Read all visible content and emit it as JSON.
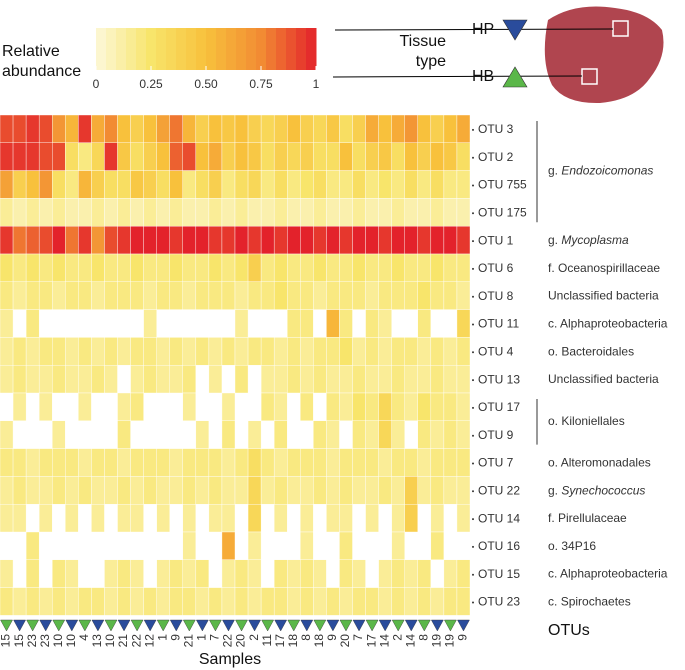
{
  "chart_data": {
    "type": "heatmap",
    "rows": [
      "OTU 3",
      "OTU 2",
      "OTU 755",
      "OTU 175",
      "OTU 1",
      "OTU 6",
      "OTU 8",
      "OTU 11",
      "OTU 4",
      "OTU 13",
      "OTU 17",
      "OTU 9",
      "OTU 7",
      "OTU 22",
      "OTU 14",
      "OTU 16",
      "OTU 15",
      "OTU 23"
    ],
    "columns": [
      "15",
      "15",
      "23",
      "23",
      "10",
      "10",
      "4",
      "13",
      "10",
      "21",
      "22",
      "12",
      "1",
      "9",
      "21",
      "1",
      "7",
      "22",
      "20",
      "2",
      "11",
      "17",
      "18",
      "8",
      "18",
      "9",
      "20",
      "7",
      "17",
      "14",
      "2",
      "14",
      "8",
      "19",
      "19",
      "9"
    ],
    "column_groups": [
      "HB",
      "HP",
      "HB",
      "HP",
      "HB",
      "HP",
      "HB",
      "HP",
      "HB",
      "HP",
      "HB",
      "HP",
      "HB",
      "HP",
      "HB",
      "HP",
      "HB",
      "HP",
      "HB",
      "HP",
      "HB",
      "HP",
      "HB",
      "HP",
      "HB",
      "HP",
      "HB",
      "HP",
      "HB",
      "HP",
      "HB",
      "HP",
      "HB",
      "HP",
      "HB",
      "HP"
    ],
    "groups": [
      {
        "name": "HP",
        "color": "#2a4c9c"
      },
      {
        "name": "HB",
        "color": "#5bb749"
      }
    ],
    "group_title": "Tissue type",
    "x_label": "Samples",
    "row_axis_label": "OTUs",
    "taxa": [
      {
        "rank": "g.",
        "name": "Endozoicomonas",
        "italic": true
      },
      {
        "rank": "g.",
        "name": "Endozoicomonas",
        "italic": true
      },
      {
        "rank": "g.",
        "name": "Endozoicomonas",
        "italic": true
      },
      {
        "rank": "g.",
        "name": "Endozoicomonas",
        "italic": true
      },
      {
        "rank": "g.",
        "name": "Mycoplasma",
        "italic": true
      },
      {
        "rank": "f.",
        "name": "Oceanospirillaceae"
      },
      {
        "name": "Unclassified bacteria"
      },
      {
        "rank": "c.",
        "name": "Alphaproteobacteria"
      },
      {
        "rank": "o.",
        "name": "Bacteroidales"
      },
      {
        "name": "Unclassified bacteria"
      },
      {
        "rank": "o.",
        "name": "Kiloniellales"
      },
      {
        "rank": "o.",
        "name": "Kiloniellales"
      },
      {
        "rank": "o.",
        "name": "Alteromonadales"
      },
      {
        "rank": "g.",
        "name": "Synechococcus",
        "italic": true
      },
      {
        "rank": "f.",
        "name": "Pirellulaceae"
      },
      {
        "rank": "o.",
        "name": "34P16"
      },
      {
        "rank": "c.",
        "name": "Alphaproteobacteria"
      },
      {
        "rank": "c.",
        "name": "Spirochaetes"
      }
    ],
    "values": [
      [
        0.9,
        0.9,
        0.95,
        0.9,
        0.7,
        0.55,
        0.95,
        0.6,
        0.75,
        0.5,
        0.4,
        0.5,
        0.65,
        0.8,
        0.55,
        0.4,
        0.5,
        0.45,
        0.5,
        0.4,
        0.35,
        0.4,
        0.5,
        0.4,
        0.35,
        0.45,
        0.3,
        0.4,
        0.6,
        0.5,
        0.6,
        0.7,
        0.5,
        0.4,
        0.5,
        0.6
      ],
      [
        0.95,
        0.95,
        0.95,
        0.9,
        0.9,
        0.3,
        0.2,
        0.35,
        0.95,
        0.45,
        0.3,
        0.4,
        0.5,
        0.85,
        0.9,
        0.5,
        0.6,
        0.4,
        0.5,
        0.45,
        0.3,
        0.4,
        0.35,
        0.4,
        0.3,
        0.3,
        0.5,
        0.3,
        0.4,
        0.45,
        0.3,
        0.5,
        0.4,
        0.5,
        0.45,
        0.3
      ],
      [
        0.65,
        0.4,
        0.5,
        0.7,
        0.3,
        0.2,
        0.55,
        0.4,
        0.3,
        0.3,
        0.45,
        0.4,
        0.3,
        0.5,
        0.2,
        0.3,
        0.4,
        0.2,
        0.3,
        0.35,
        0.2,
        0.3,
        0.2,
        0.25,
        0.3,
        0.2,
        0.2,
        0.3,
        0.2,
        0.25,
        0.2,
        0.3,
        0.2,
        0.3,
        0.2,
        0.2
      ],
      [
        0.15,
        0.1,
        0.15,
        0.1,
        0.15,
        0.1,
        0.1,
        0.15,
        0.1,
        0.15,
        0.1,
        0.15,
        0.1,
        0.15,
        0.1,
        0.1,
        0.15,
        0.1,
        0.15,
        0.1,
        0.1,
        0.15,
        0.1,
        0.1,
        0.15,
        0.1,
        0.1,
        0.15,
        0.1,
        0.1,
        0.15,
        0.1,
        0.1,
        0.15,
        0.1,
        0.1
      ],
      [
        0.95,
        0.8,
        0.85,
        0.9,
        1,
        0.8,
        0.95,
        0.7,
        0.9,
        0.95,
        1,
        1,
        1,
        0.95,
        1,
        1,
        0.95,
        0.95,
        1,
        0.95,
        1,
        0.95,
        1,
        1,
        0.95,
        1,
        0.95,
        1,
        1,
        0.95,
        1,
        1,
        0.95,
        1,
        1,
        0.95
      ],
      [
        0.25,
        0.2,
        0.25,
        0.2,
        0.25,
        0.2,
        0.2,
        0.25,
        0.2,
        0.2,
        0.25,
        0.2,
        0.2,
        0.25,
        0.2,
        0.2,
        0.25,
        0.2,
        0.25,
        0.4,
        0.2,
        0.25,
        0.2,
        0.2,
        0.25,
        0.2,
        0.2,
        0.25,
        0.2,
        0.2,
        0.25,
        0.2,
        0.2,
        0.25,
        0.2,
        0.2
      ],
      [
        0.2,
        0.15,
        0.2,
        0.2,
        0.15,
        0.2,
        0.2,
        0.15,
        0.2,
        0.2,
        0.2,
        0.15,
        0.2,
        0.2,
        0.15,
        0.2,
        0.2,
        0.2,
        0.15,
        0.2,
        0.2,
        0.25,
        0.2,
        0.2,
        0.15,
        0.2,
        0.2,
        0.2,
        0.15,
        0.2,
        0.2,
        0.2,
        0.25,
        0.2,
        0.2,
        0.15
      ],
      [
        0.15,
        null,
        0.2,
        null,
        null,
        null,
        null,
        null,
        null,
        null,
        null,
        0.15,
        null,
        null,
        null,
        null,
        null,
        null,
        0.15,
        null,
        null,
        null,
        0.2,
        0.2,
        null,
        0.55,
        0.2,
        null,
        0.2,
        0.15,
        null,
        null,
        0.2,
        null,
        null,
        0.35
      ],
      [
        0.15,
        0.2,
        0.15,
        0.2,
        0.2,
        0.15,
        0.2,
        0.15,
        0.2,
        0.15,
        0.2,
        0.2,
        0.15,
        0.2,
        0.15,
        0.2,
        0.15,
        0.2,
        0.15,
        0.2,
        0.2,
        0.15,
        0.2,
        0.15,
        0.2,
        0.2,
        0.25,
        0.15,
        0.2,
        0.15,
        0.2,
        0.2,
        0.15,
        0.2,
        0.15,
        0.2
      ],
      [
        0.15,
        0.2,
        0.15,
        0.15,
        0.2,
        0.15,
        0.15,
        0.2,
        0.15,
        null,
        0.15,
        0.2,
        0.15,
        0.15,
        0.2,
        null,
        0.15,
        null,
        0.2,
        null,
        0.15,
        0.15,
        0.2,
        0.15,
        0.2,
        0.15,
        0.15,
        0.2,
        0.15,
        0.15,
        0.2,
        0.15,
        0.15,
        0.2,
        0.15,
        0.15
      ],
      [
        null,
        0.15,
        null,
        0.15,
        null,
        null,
        0.15,
        null,
        null,
        0.15,
        0.2,
        null,
        null,
        null,
        0.15,
        null,
        null,
        0.15,
        null,
        null,
        0.2,
        0.15,
        null,
        0.2,
        null,
        0.2,
        0.15,
        0.25,
        0.2,
        0.35,
        0.2,
        0.15,
        0.25,
        0.2,
        0.2,
        0.15
      ],
      [
        0.15,
        null,
        null,
        null,
        0.15,
        null,
        null,
        null,
        null,
        0.2,
        null,
        null,
        null,
        null,
        null,
        0.15,
        null,
        0.2,
        null,
        0.15,
        null,
        0.2,
        null,
        null,
        0.2,
        0.15,
        null,
        0.2,
        0.15,
        0.35,
        0.15,
        null,
        0.2,
        0.15,
        0.2,
        0.15
      ],
      [
        0.2,
        0.2,
        0.15,
        0.2,
        0.2,
        0.2,
        0.15,
        0.2,
        0.2,
        0.15,
        0.2,
        0.2,
        0.2,
        0.15,
        0.2,
        0.2,
        0.2,
        0.15,
        0.2,
        0.3,
        0.2,
        0.15,
        0.2,
        0.2,
        0.2,
        0.15,
        0.2,
        0.2,
        0.2,
        0.15,
        0.2,
        0.2,
        0.15,
        0.2,
        0.2,
        0.2
      ],
      [
        0.15,
        0.2,
        0.15,
        0.15,
        0.2,
        0.15,
        0.2,
        0.15,
        0.15,
        0.2,
        0.15,
        0.2,
        0.15,
        0.15,
        0.2,
        0.15,
        0.2,
        0.15,
        0.15,
        0.35,
        0.15,
        0.2,
        0.15,
        0.15,
        0.2,
        0.15,
        0.2,
        0.15,
        0.15,
        0.2,
        0.15,
        0.4,
        0.15,
        0.2,
        0.15,
        0.15
      ],
      [
        0.15,
        0.15,
        null,
        0.15,
        null,
        0.15,
        null,
        0.15,
        null,
        0.15,
        0.15,
        null,
        0.15,
        null,
        0.15,
        null,
        0.15,
        0.15,
        null,
        0.35,
        null,
        0.15,
        null,
        0.15,
        null,
        0.15,
        0.15,
        null,
        0.15,
        null,
        0.15,
        0.4,
        null,
        0.15,
        null,
        0.15
      ],
      [
        null,
        null,
        0.2,
        null,
        null,
        null,
        null,
        null,
        null,
        null,
        null,
        null,
        null,
        null,
        0.15,
        null,
        null,
        0.6,
        null,
        0.15,
        null,
        null,
        null,
        0.15,
        null,
        null,
        0.2,
        null,
        null,
        null,
        0.15,
        null,
        null,
        0.2,
        null,
        null
      ],
      [
        0.15,
        null,
        0.2,
        null,
        0.2,
        0.15,
        null,
        null,
        0.15,
        0.2,
        0.15,
        null,
        0.15,
        0.2,
        0.15,
        0.2,
        null,
        0.15,
        0.2,
        0.15,
        null,
        0.2,
        0.15,
        0.2,
        0.15,
        null,
        0.2,
        0.15,
        null,
        0.15,
        0.2,
        0.15,
        0.2,
        null,
        0.15,
        0.2
      ],
      [
        0.2,
        0.15,
        0.2,
        0.15,
        0.2,
        0.15,
        0.2,
        0.2,
        0.15,
        0.2,
        0.15,
        0.2,
        0.15,
        0.2,
        0.2,
        0.15,
        0.2,
        0.15,
        0.2,
        0.15,
        0.2,
        0.2,
        0.15,
        0.2,
        0.15,
        0.2,
        0.15,
        0.2,
        0.2,
        0.15,
        0.2,
        0.15,
        0.2,
        0.15,
        0.2,
        0.2
      ]
    ],
    "colorbar": {
      "label": "Relative abundance",
      "lim": [
        0,
        1
      ],
      "ticks": [
        0,
        0.25,
        {
          "value": 0.5,
          "label": "0.50"
        },
        0.75,
        1
      ],
      "colormap": [
        "#fcf8d9",
        "#f8e56b",
        "#f8c13c",
        "#f28b33",
        "#e3222b"
      ]
    }
  }
}
